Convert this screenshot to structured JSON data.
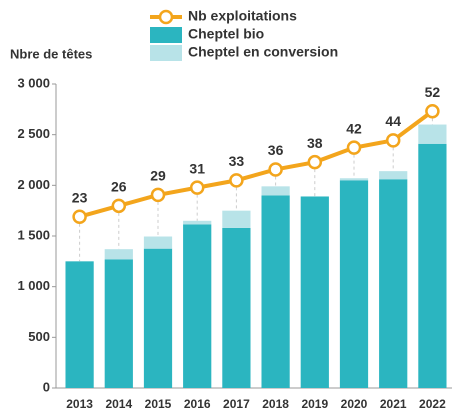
{
  "chart_data": {
    "type": "bar-line",
    "y_axis_label": "Nbre de têtes",
    "categories": [
      "2013",
      "2014",
      "2015",
      "2016",
      "2017",
      "2018",
      "2019",
      "2020",
      "2021",
      "2022"
    ],
    "series": [
      {
        "name": "Cheptel bio",
        "type": "bar",
        "color": "#2bb5c0",
        "values": [
          1250,
          1270,
          1375,
          1615,
          1580,
          1900,
          1890,
          2050,
          2060,
          2410
        ]
      },
      {
        "name": "Cheptel en conversion",
        "type": "bar",
        "color": "#b8e3e8",
        "values": [
          0,
          100,
          120,
          35,
          170,
          90,
          0,
          20,
          80,
          190
        ]
      },
      {
        "name": "Nb exploitations",
        "type": "line",
        "axis": "y2",
        "color": "#f3a51c",
        "values": [
          23,
          26,
          29,
          31,
          33,
          36,
          38,
          42,
          44,
          52
        ]
      }
    ],
    "stacked": true,
    "ylim": [
      0,
      3000
    ],
    "yticks": [
      0,
      {
        "value": 500,
        "label": "500"
      },
      {
        "value": 1000,
        "label": "1 000"
      },
      {
        "value": 1500,
        "label": "1 500"
      },
      {
        "value": 2000,
        "label": "2 000"
      },
      {
        "value": 2500,
        "label": "2 500"
      },
      {
        "value": 3000,
        "label": "3 000"
      }
    ],
    "y2lim": [
      -24.1,
      59.5
    ],
    "legend": "top"
  }
}
